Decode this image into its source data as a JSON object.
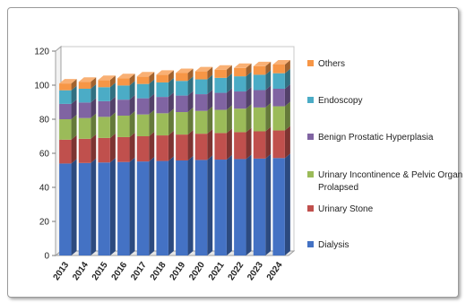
{
  "chart_data": {
    "type": "bar",
    "stacked": true,
    "three_d": true,
    "categories": [
      "2013",
      "2014",
      "2015",
      "2016",
      "2017",
      "2018",
      "2019",
      "2020",
      "2021",
      "2022",
      "2023",
      "2024"
    ],
    "series": [
      {
        "name": "Dialysis",
        "color": "#4472C4",
        "values": [
          54,
          54.3,
          54.6,
          54.9,
          55.2,
          55.5,
          55.8,
          56.1,
          56.3,
          56.6,
          56.9,
          57.2
        ]
      },
      {
        "name": "Urinary Stone",
        "color": "#C0504D",
        "values": [
          14,
          14.2,
          14.4,
          14.6,
          14.8,
          15,
          15.2,
          15.4,
          15.6,
          15.8,
          16,
          16.2
        ]
      },
      {
        "name": "Urinary Incontinence & Pelvic Organ Prolapsed",
        "color": "#9BBB59",
        "values": [
          12,
          12.2,
          12.4,
          12.6,
          12.8,
          13,
          13.2,
          13.4,
          13.6,
          13.8,
          14,
          14.2
        ]
      },
      {
        "name": "Benign Prostatic Hyperplasia",
        "color": "#8064A2",
        "values": [
          9,
          9.1,
          9.2,
          9.4,
          9.5,
          9.6,
          9.7,
          9.8,
          10,
          10.1,
          10.2,
          10.3
        ]
      },
      {
        "name": "Endoscopy",
        "color": "#4BACC6",
        "values": [
          8,
          8.1,
          8.2,
          8.3,
          8.4,
          8.5,
          8.6,
          8.7,
          8.8,
          8.9,
          9,
          9.1
        ]
      },
      {
        "name": "Others",
        "color": "#F79646",
        "values": [
          4,
          4.1,
          4.2,
          4.3,
          4.4,
          4.5,
          4.6,
          4.7,
          4.8,
          4.9,
          5,
          5.1
        ]
      }
    ],
    "yticks": [
      "0",
      "20",
      "40",
      "60",
      "80",
      "100",
      "120"
    ],
    "ylim": [
      0,
      120
    ],
    "legend": [
      {
        "label": "Others",
        "color": "#F79646"
      },
      {
        "label": "Endoscopy",
        "color": "#4BACC6"
      },
      {
        "label": "Benign Prostatic Hyperplasia",
        "color": "#8064A2"
      },
      {
        "label_lines": [
          "Urinary Incontinence & Pelvic Organ",
          "Prolapsed"
        ],
        "color": "#9BBB59"
      },
      {
        "label": "Urinary Stone",
        "color": "#C0504D"
      },
      {
        "label": "Dialysis",
        "color": "#4472C4"
      }
    ],
    "legend_position": "right",
    "grid": false
  }
}
